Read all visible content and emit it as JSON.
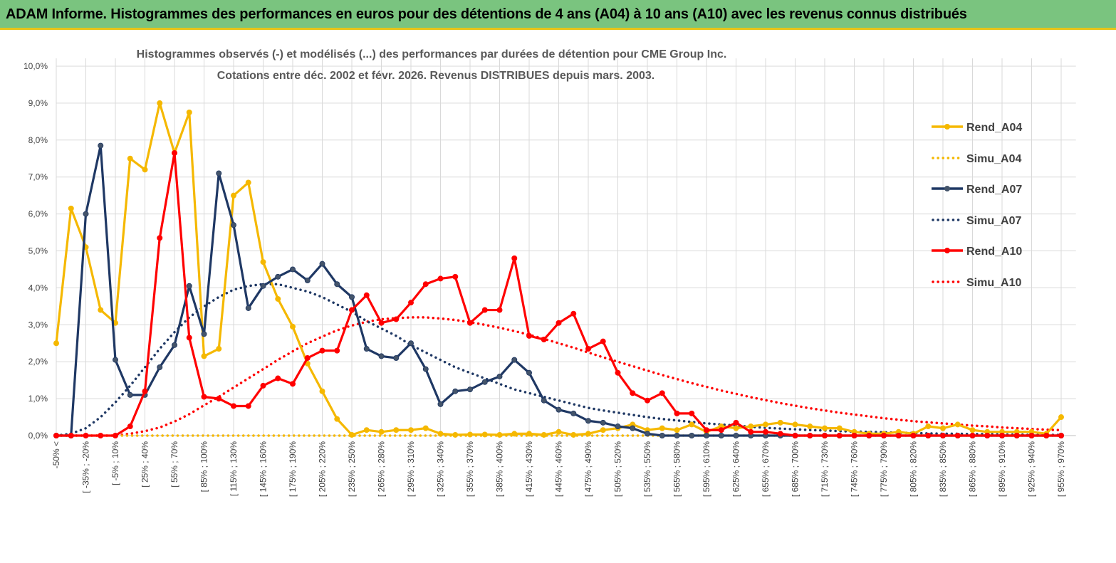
{
  "banner": {
    "title": "ADAM Informe. Histogrammes des performances en euros pour des détentions de 4 ans (A04) à 10 ans (A10) avec les revenus connus distribués"
  },
  "colors": {
    "banner_bg": "#7ac47f",
    "accent_yellow": "#e8c419",
    "A04": "#f5b800",
    "A07": "#1f3864",
    "A10": "#ff0000"
  },
  "chart_data": {
    "type": "line",
    "title_line1": "Histogrammes observés (-) et modélisés (...) des performances par durées de détention pour CME Group Inc.",
    "title_line2": "Cotations entre déc. 2002 et févr.  2026. Revenus DISTRIBUES depuis mars. 2003.",
    "y_ticks": [
      "0,0%",
      "1,0%",
      "2,0%",
      "3,0%",
      "4,0%",
      "5,0%",
      "6,0%",
      "7,0%",
      "8,0%",
      "9,0%",
      "10,0%"
    ],
    "ylim": [
      0,
      10
    ],
    "x_labels": [
      "-50% <",
      "",
      "[ -35% ; -20%",
      "",
      "[ -5% ; 10%",
      "",
      "[ 25% ; 40%",
      "",
      "[ 55% ; 70%",
      "",
      "[ 85% ; 100%",
      "",
      "[ 115% ; 130%",
      "",
      "[ 145% ; 160%",
      "",
      "[ 175% ; 190%",
      "",
      "[ 205% ; 220%",
      "",
      "[ 235% ; 250%",
      "",
      "[ 265% ; 280%",
      "",
      "[ 295% ; 310%",
      "",
      "[ 325% ; 340%",
      "",
      "[ 355% ; 370%",
      "",
      "[ 385% ; 400%",
      "",
      "[ 415% ; 430%",
      "",
      "[ 445% ; 460%",
      "",
      "[ 475% ; 490%",
      "",
      "[ 505% ; 520%",
      "",
      "[ 535% ; 550%",
      "",
      "[ 565% ; 580%",
      "",
      "[ 595% ; 610%",
      "",
      "[ 625% ; 640%",
      "",
      "[ 655% ; 670%",
      "",
      "[ 685% ; 700%",
      "",
      "[ 715% ; 730%",
      "",
      "[ 745% ; 760%",
      "",
      "[ 775% ; 790%",
      "",
      "[ 805% ; 820%",
      "",
      "[ 835% ; 850%",
      "",
      "[ 865% ; 880%",
      "",
      "[ 895% ; 910%",
      "",
      "[ 925% ; 940%",
      "",
      "[ 955% ; 970%",
      ""
    ],
    "series": [
      {
        "name": "Rend_A04",
        "style": "solid",
        "color": "#f5b800",
        "values": [
          2.5,
          6.15,
          5.1,
          3.4,
          3.05,
          7.5,
          7.2,
          9.0,
          7.65,
          8.75,
          2.15,
          2.35,
          6.5,
          6.85,
          4.7,
          3.7,
          2.95,
          1.95,
          1.2,
          0.45,
          0.02,
          0.15,
          0.1,
          0.15,
          0.15,
          0.2,
          0.05,
          0.02,
          0.03,
          0.03,
          0.02,
          0.05,
          0.05,
          0.02,
          0.1,
          0.02,
          0.05,
          0.15,
          0.2,
          0.3,
          0.15,
          0.2,
          0.15,
          0.3,
          0.1,
          0.25,
          0.2,
          0.25,
          0.3,
          0.35,
          0.3,
          0.25,
          0.2,
          0.2,
          0.1,
          0.05,
          0.05,
          0.1,
          0.05,
          0.25,
          0.2,
          0.3,
          0.15,
          0.1,
          0.1,
          0.1,
          0.1,
          0.05,
          0.5
        ]
      },
      {
        "name": "Simu_A04",
        "style": "dotted",
        "color": "#f5b800",
        "values": [
          0,
          0,
          0,
          0,
          0,
          0,
          0,
          0,
          0,
          0,
          0,
          0,
          0,
          0,
          0,
          0,
          0,
          0,
          0,
          0,
          0,
          0,
          0,
          0,
          0,
          0,
          0,
          0,
          0,
          0,
          0,
          0,
          0,
          0,
          0,
          0,
          0,
          0,
          0,
          0,
          0,
          0,
          0,
          0,
          0,
          0,
          0,
          0,
          0,
          0,
          0,
          0,
          0,
          0,
          0,
          0,
          0,
          0,
          0,
          0,
          0,
          0,
          0,
          0,
          0,
          0,
          0,
          0,
          0
        ]
      },
      {
        "name": "Rend_A07",
        "style": "solid",
        "color": "#1f3864",
        "values": [
          0,
          0,
          6.0,
          7.85,
          2.05,
          1.1,
          1.1,
          1.85,
          2.45,
          4.05,
          2.75,
          7.1,
          5.7,
          3.45,
          4.05,
          4.3,
          4.5,
          4.2,
          4.65,
          4.1,
          3.75,
          2.35,
          2.15,
          2.1,
          2.5,
          1.8,
          0.85,
          1.2,
          1.25,
          1.45,
          1.6,
          2.05,
          1.7,
          0.95,
          0.7,
          0.6,
          0.4,
          0.35,
          0.25,
          0.2,
          0.05,
          0,
          0,
          0,
          0,
          0,
          0,
          0,
          0,
          0,
          0,
          0,
          0,
          0,
          0,
          0,
          0,
          0,
          0,
          0,
          0,
          0,
          0,
          0,
          0,
          0,
          0,
          0,
          0
        ]
      },
      {
        "name": "Simu_A07",
        "style": "dotted",
        "color": "#1f3864",
        "values": [
          0,
          0.05,
          0.2,
          0.5,
          0.9,
          1.35,
          1.85,
          2.35,
          2.8,
          3.2,
          3.5,
          3.75,
          3.95,
          4.05,
          4.1,
          4.1,
          4.0,
          3.9,
          3.75,
          3.55,
          3.35,
          3.1,
          2.9,
          2.7,
          2.45,
          2.25,
          2.05,
          1.85,
          1.7,
          1.55,
          1.4,
          1.25,
          1.15,
          1.05,
          0.95,
          0.85,
          0.75,
          0.68,
          0.62,
          0.56,
          0.5,
          0.45,
          0.41,
          0.37,
          0.33,
          0.3,
          0.27,
          0.24,
          0.21,
          0.19,
          0.17,
          0.15,
          0.14,
          0.12,
          0.11,
          0.1,
          0.09,
          0.08,
          0.07,
          0.06,
          0.05,
          0.05,
          0.04,
          0.04,
          0.03,
          0.03,
          0.02,
          0.02,
          0.02
        ]
      },
      {
        "name": "Rend_A10",
        "style": "solid",
        "color": "#ff0000",
        "values": [
          0,
          0,
          0,
          0,
          0,
          0.25,
          1.2,
          5.35,
          7.65,
          2.65,
          1.05,
          1.0,
          0.8,
          0.8,
          1.35,
          1.55,
          1.4,
          2.1,
          2.3,
          2.3,
          3.4,
          3.8,
          3.05,
          3.15,
          3.6,
          4.1,
          4.25,
          4.3,
          3.05,
          3.4,
          3.4,
          4.8,
          2.7,
          2.6,
          3.05,
          3.3,
          2.35,
          2.55,
          1.7,
          1.15,
          0.95,
          1.15,
          0.6,
          0.6,
          0.15,
          0.15,
          0.35,
          0.1,
          0.1,
          0.05,
          0,
          0,
          0,
          0,
          0,
          0,
          0,
          0,
          0,
          0,
          0,
          0,
          0,
          0,
          0,
          0,
          0,
          0,
          0
        ]
      },
      {
        "name": "Simu_A10",
        "style": "dotted",
        "color": "#ff0000",
        "values": [
          0,
          0,
          0,
          0,
          0,
          0.05,
          0.12,
          0.22,
          0.38,
          0.58,
          0.82,
          1.05,
          1.3,
          1.55,
          1.8,
          2.05,
          2.28,
          2.5,
          2.68,
          2.85,
          2.98,
          3.08,
          3.15,
          3.18,
          3.2,
          3.2,
          3.17,
          3.13,
          3.07,
          3.0,
          2.92,
          2.83,
          2.73,
          2.62,
          2.5,
          2.38,
          2.25,
          2.12,
          2.0,
          1.88,
          1.76,
          1.64,
          1.53,
          1.42,
          1.32,
          1.22,
          1.13,
          1.04,
          0.96,
          0.88,
          0.81,
          0.74,
          0.68,
          0.62,
          0.57,
          0.52,
          0.47,
          0.43,
          0.39,
          0.36,
          0.33,
          0.3,
          0.27,
          0.25,
          0.22,
          0.2,
          0.18,
          0.16,
          0.15
        ]
      }
    ]
  }
}
